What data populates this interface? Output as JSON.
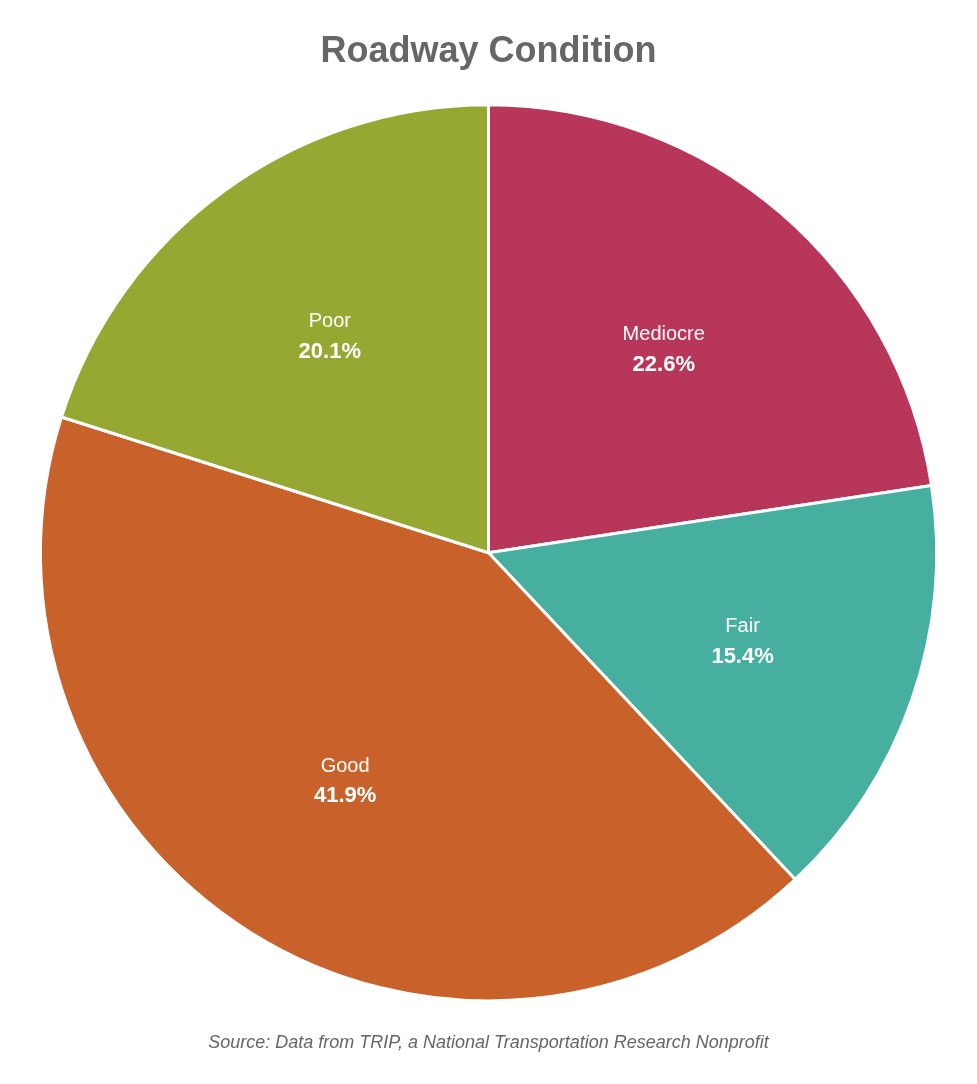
{
  "chart_data": {
    "type": "pie",
    "title": "Roadway Condition",
    "annotations": [
      "Source: Data from TRIP, a National Transportation Research Nonprofit"
    ],
    "categories": [
      "Mediocre",
      "Fair",
      "Good",
      "Poor"
    ],
    "values": [
      22.6,
      15.4,
      41.9,
      20.1
    ],
    "value_labels": [
      "22.6%",
      "15.4%",
      "41.9%",
      "20.1%"
    ],
    "colors": [
      "#B8365A",
      "#47AFA0",
      "#C8622A",
      "#96A832"
    ],
    "data_labels": true
  }
}
